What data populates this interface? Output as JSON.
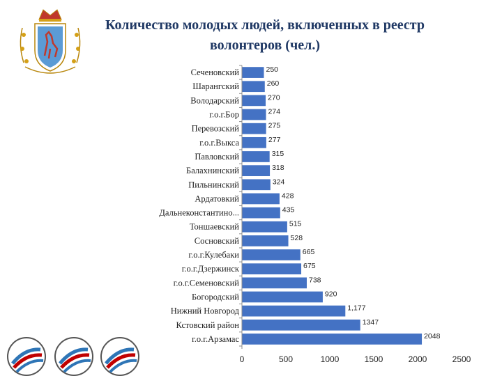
{
  "title": "Количество молодых людей, включенных в реестр волонтеров (чел.)",
  "colors": {
    "bar": "#4472c4",
    "title": "#1f3864",
    "axis": "#8c8c8c"
  },
  "icons": {
    "emblem": "nizhny-novgorod-coat-of-arms-icon",
    "logos": "youth-organization-logo-icon"
  },
  "chart_data": {
    "type": "bar",
    "orientation": "horizontal",
    "title": "Количество молодых людей, включенных в реестр волонтеров (чел.)",
    "categories": [
      "Сеченовский",
      "Шарангский",
      "Володарский",
      "г.о.г.Бор",
      "Перевозский",
      "г.о.г.Выкса",
      "Павловский",
      "Балахнинский",
      "Пильнинский",
      "Ардатовкий",
      "Дальнеконстантино...",
      "Тоншаевский",
      "Сосновский",
      "г.о.г.Кулебаки",
      "г.о.г.Дзержинск",
      "г.о.г.Семеновский",
      "Богородский",
      "Нижний Новгород",
      "Кстовский район",
      "г.о.г.Арзамас"
    ],
    "values": [
      250,
      260,
      270,
      274,
      275,
      277,
      315,
      318,
      324,
      428,
      435,
      515,
      528,
      665,
      675,
      738,
      920,
      1177,
      1347,
      2048
    ],
    "value_labels": [
      "250",
      "260",
      "270",
      "274",
      "275",
      "277",
      "315",
      "318",
      "324",
      "428",
      "435",
      "515",
      "528",
      "665",
      "675",
      "738",
      "920",
      "1,177",
      "1347",
      "2048"
    ],
    "xlim": [
      0,
      2500
    ],
    "xticks": [
      0,
      500,
      1000,
      1500,
      2000,
      2500
    ],
    "grid": false,
    "legend": "none"
  }
}
